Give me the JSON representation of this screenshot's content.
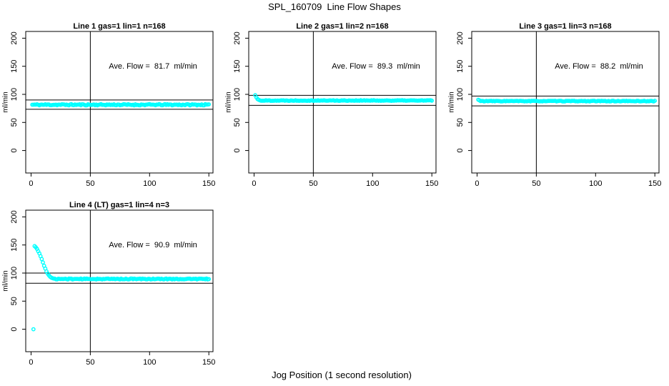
{
  "page_title": "SPL_160709  Line Flow Shapes",
  "outer_xlabel": "Jog Position (1 second resolution)",
  "colors": {
    "points": "#00FFFF",
    "axis": "#000000",
    "background": "#FFFFFF",
    "text": "#000000"
  },
  "layout_hints": {
    "grid": "2 rows x 3 cols",
    "panels_used": 4,
    "legend": "none",
    "gridlines": "off"
  },
  "chart_data": [
    {
      "type": "scatter",
      "title": "Line 1 gas=1 lin=1 n=168",
      "annotation": "Ave. Flow =  81.7  ml/min",
      "ave_flow_ml_min": 81.7,
      "n": 168,
      "ylabel": "ml/min",
      "x_ticks": [
        0,
        50,
        100,
        150
      ],
      "y_ticks": [
        0,
        50,
        100,
        150,
        200
      ],
      "xlim": [
        -4.5,
        153.5
      ],
      "ylim": [
        -40,
        212
      ],
      "vline_x": 50,
      "hlines": [
        89.9,
        73.5
      ],
      "series": {
        "name": "flow",
        "marker": "open-circle",
        "color": "#00FFFF",
        "outliers": [],
        "transient": [],
        "flat_level": 81.5,
        "flat_start_x": 1,
        "flat_end_x": 150,
        "noise_amp": 1.1,
        "seed": 11
      }
    },
    {
      "type": "scatter",
      "title": "Line 2 gas=1 lin=2 n=168",
      "annotation": "Ave. Flow =  89.3  ml/min",
      "ave_flow_ml_min": 89.3,
      "n": 168,
      "ylabel": "ml/min",
      "x_ticks": [
        0,
        50,
        100,
        150
      ],
      "y_ticks": [
        0,
        50,
        100,
        150,
        200
      ],
      "xlim": [
        -4.5,
        153.5
      ],
      "ylim": [
        -40,
        212
      ],
      "vline_x": 50,
      "hlines": [
        98.2,
        80.4
      ],
      "series": {
        "name": "flow",
        "marker": "open-circle",
        "color": "#00FFFF",
        "outliers": [],
        "transient": [
          [
            1,
            98.5
          ],
          [
            2,
            94.5
          ],
          [
            3,
            91.5
          ],
          [
            4,
            90.2
          ]
        ],
        "flat_level": 89.0,
        "flat_start_x": 5,
        "flat_end_x": 150,
        "noise_amp": 0.6,
        "seed": 22
      }
    },
    {
      "type": "scatter",
      "title": "Line 3 gas=1 lin=3 n=168",
      "annotation": "Ave. Flow =  88.2  ml/min",
      "ave_flow_ml_min": 88.2,
      "n": 168,
      "ylabel": "ml/min",
      "x_ticks": [
        0,
        50,
        100,
        150
      ],
      "y_ticks": [
        0,
        50,
        100,
        150,
        200
      ],
      "xlim": [
        -4.5,
        153.5
      ],
      "ylim": [
        -40,
        212
      ],
      "vline_x": 50,
      "hlines": [
        97.0,
        79.4
      ],
      "series": {
        "name": "flow",
        "marker": "open-circle",
        "color": "#00FFFF",
        "outliers": [],
        "transient": [
          [
            1,
            90.5
          ],
          [
            2,
            89.3
          ]
        ],
        "flat_level": 88.0,
        "flat_start_x": 3,
        "flat_end_x": 150,
        "noise_amp": 0.6,
        "seed": 33
      }
    },
    {
      "type": "scatter",
      "title": "Line 4 (LT) gas=1 lin=4 n=3",
      "annotation": "Ave. Flow =  90.9  ml/min",
      "ave_flow_ml_min": 90.9,
      "n": 3,
      "ylabel": "ml/min",
      "x_ticks": [
        0,
        50,
        100,
        150
      ],
      "y_ticks": [
        0,
        50,
        100,
        150,
        200
      ],
      "xlim": [
        -4.5,
        153.5
      ],
      "ylim": [
        -40,
        212
      ],
      "vline_x": 50,
      "hlines": [
        100.0,
        81.8
      ],
      "series": {
        "name": "flow",
        "marker": "open-circle",
        "color": "#00FFFF",
        "outliers": [
          [
            2,
            0
          ]
        ],
        "transient": [
          [
            3,
            148
          ],
          [
            4,
            146
          ],
          [
            5,
            143
          ],
          [
            6,
            139
          ],
          [
            7,
            135
          ],
          [
            8,
            130
          ],
          [
            9,
            125
          ],
          [
            10,
            119
          ],
          [
            11,
            113
          ],
          [
            12,
            108
          ],
          [
            13,
            103
          ],
          [
            14,
            99
          ],
          [
            15,
            96
          ],
          [
            16,
            93.5
          ],
          [
            17,
            92
          ],
          [
            18,
            91
          ],
          [
            19,
            90.2
          ]
        ],
        "flat_level": 89.5,
        "flat_start_x": 20,
        "flat_end_x": 150,
        "noise_amp": 0.8,
        "seed": 44
      }
    }
  ]
}
